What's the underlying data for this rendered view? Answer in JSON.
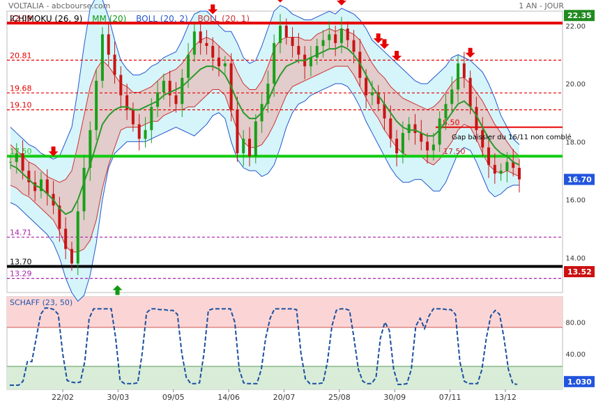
{
  "header": {
    "source": "VOLTALIA - abcbourse.com",
    "period": "1 AN - JOUR"
  },
  "legend": [
    {
      "label": "ICHIMOKU (26, 9)",
      "color": "#000000"
    },
    {
      "label": "MM (20)",
      "color": "#119911"
    },
    {
      "label": "BOLL (20, 2)",
      "color": "#2255cc"
    },
    {
      "label": "BOLL (20, 1)",
      "color": "#cc3333"
    }
  ],
  "annotations": {
    "gap_note": "Gap baissier du 16/11 non comblé",
    "schaff_title": "SCHAFF (23, 50)"
  },
  "colors": {
    "up": "#19a019",
    "down": "#c81414",
    "resistance": "#e60000",
    "support": "#11cc11",
    "boll2_fill": "#d5f5fb",
    "boll1_fill": "#e2cccc",
    "ma": "#2a9a2a"
  },
  "chart_data": [
    {
      "type": "line",
      "title": "VOLTALIA",
      "x_ticks": [
        "22/02",
        "30/03",
        "09/05",
        "14/06",
        "20/07",
        "25/08",
        "30/09",
        "07/11",
        "13/12"
      ],
      "y_ticks": [
        "22.00",
        "20.00",
        "18.00",
        "16.00",
        "14.00"
      ],
      "ylim": [
        12.8,
        22.5
      ],
      "last_price": "16.70",
      "y_badges": [
        "22.35",
        "16.70",
        "13.52"
      ],
      "levels": [
        {
          "label": "22.09",
          "value": 22.09,
          "style": "thick",
          "color": "#e60000"
        },
        {
          "label": "20.81",
          "value": 20.81,
          "style": "dashed",
          "color": "#e60000"
        },
        {
          "label": "19.68",
          "value": 19.68,
          "style": "dashed",
          "color": "#e60000"
        },
        {
          "label": "19.10",
          "value": 19.1,
          "style": "dashed",
          "color": "#e60000"
        },
        {
          "label": "18.50",
          "value": 18.5,
          "style": "thick-partial",
          "color": "#e60000"
        },
        {
          "label": "17.50",
          "value": 17.5,
          "style": "thick",
          "color": "#11cc11"
        },
        {
          "label": "14.71",
          "value": 14.71,
          "style": "dashed",
          "color": "#aa22aa"
        },
        {
          "label": "13.70",
          "value": 13.7,
          "style": "thick",
          "color": "#000000"
        },
        {
          "label": "13.29",
          "value": 13.29,
          "style": "dashed",
          "color": "#aa22aa"
        }
      ],
      "close_series": [
        17.3,
        17.6,
        17.0,
        16.6,
        16.3,
        16.7,
        16.2,
        15.8,
        15.0,
        14.3,
        13.8,
        15.6,
        17.1,
        18.4,
        20.1,
        21.7,
        21.0,
        20.3,
        19.6,
        19.1,
        18.6,
        18.1,
        18.4,
        19.2,
        19.7,
        20.1,
        19.6,
        19.3,
        20.2,
        21.0,
        21.8,
        21.4,
        21.3,
        20.9,
        20.6,
        20.7,
        19.1,
        17.6,
        18.1,
        17.5,
        18.7,
        19.3,
        20.0,
        21.4,
        22.0,
        21.6,
        21.3,
        21.0,
        20.6,
        20.9,
        21.3,
        21.5,
        21.7,
        21.4,
        21.9,
        21.5,
        21.1,
        20.2,
        19.6,
        19.7,
        19.3,
        18.8,
        18.1,
        17.6,
        18.3,
        18.6,
        18.3,
        18.0,
        17.7,
        17.9,
        18.8,
        19.3,
        19.8,
        20.7,
        20.2,
        19.2,
        18.4,
        17.8,
        17.2,
        16.9,
        17.0,
        17.3,
        17.1,
        16.7
      ],
      "ma20_series": [
        17.2,
        17.1,
        16.9,
        16.7,
        16.5,
        16.4,
        16.2,
        16.0,
        15.7,
        15.5,
        15.6,
        16.0,
        16.6,
        17.2,
        17.9,
        18.6,
        18.9,
        19.1,
        19.2,
        19.2,
        19.1,
        19.1,
        19.2,
        19.3,
        19.4,
        19.6,
        19.7,
        19.8,
        19.9,
        20.1,
        20.3,
        20.5,
        20.6,
        20.6,
        20.5,
        20.3,
        19.9,
        19.4,
        19.0,
        18.8,
        18.8,
        19.0,
        19.4,
        19.9,
        20.3,
        20.6,
        20.7,
        20.8,
        20.8,
        20.9,
        21.0,
        21.1,
        21.2,
        21.2,
        21.3,
        21.2,
        21.0,
        20.7,
        20.3,
        19.9,
        19.6,
        19.3,
        19.0,
        18.7,
        18.5,
        18.4,
        18.4,
        18.3,
        18.2,
        18.2,
        18.4,
        18.7,
        19.0,
        19.3,
        19.4,
        19.2,
        18.9,
        18.5,
        18.1,
        17.8,
        17.6,
        17.5,
        17.3,
        17.2
      ],
      "boll2_upper": [
        18.5,
        18.3,
        18.1,
        17.9,
        17.8,
        17.6,
        17.5,
        17.4,
        17.5,
        18.0,
        18.5,
        19.8,
        21.3,
        22.6,
        23.0,
        22.9,
        22.3,
        21.5,
        20.8,
        20.5,
        20.3,
        20.3,
        20.4,
        20.6,
        20.7,
        20.9,
        21.0,
        21.1,
        21.5,
        22.0,
        22.4,
        22.5,
        22.5,
        22.3,
        22.0,
        21.8,
        21.8,
        21.4,
        20.9,
        20.7,
        20.8,
        21.3,
        21.9,
        22.5,
        22.7,
        22.6,
        22.4,
        22.3,
        22.2,
        22.2,
        22.3,
        22.4,
        22.5,
        22.4,
        22.6,
        22.5,
        22.4,
        22.2,
        21.9,
        21.5,
        21.3,
        21.1,
        20.9,
        20.7,
        20.5,
        20.3,
        20.1,
        20.0,
        20.0,
        20.2,
        20.4,
        20.6,
        20.9,
        21.0,
        20.9,
        20.8,
        20.6,
        20.4,
        20.0,
        19.5,
        18.9,
        18.5,
        18.1,
        17.9
      ],
      "boll2_lower": [
        15.9,
        15.8,
        15.6,
        15.4,
        15.2,
        15.0,
        14.8,
        14.5,
        14.0,
        13.3,
        12.8,
        12.5,
        12.7,
        13.4,
        14.5,
        16.0,
        17.1,
        17.6,
        17.8,
        18.0,
        18.0,
        18.0,
        18.0,
        18.1,
        18.2,
        18.3,
        18.4,
        18.5,
        18.4,
        18.3,
        18.2,
        18.4,
        18.6,
        18.9,
        19.0,
        18.8,
        18.0,
        17.4,
        17.1,
        17.0,
        17.0,
        16.8,
        16.9,
        17.2,
        17.8,
        18.5,
        19.0,
        19.3,
        19.4,
        19.6,
        19.7,
        19.8,
        19.9,
        20.0,
        20.0,
        19.9,
        19.6,
        19.2,
        18.7,
        18.3,
        17.9,
        17.5,
        17.1,
        16.8,
        16.6,
        16.6,
        16.7,
        16.7,
        16.5,
        16.3,
        16.3,
        16.6,
        17.1,
        17.6,
        17.8,
        17.7,
        17.3,
        16.8,
        16.3,
        16.1,
        16.2,
        16.4,
        16.5,
        16.5
      ],
      "boll1_upper": [
        17.9,
        17.7,
        17.5,
        17.3,
        17.2,
        17.0,
        16.8,
        16.7,
        16.6,
        16.7,
        17.0,
        17.9,
        18.9,
        19.9,
        20.5,
        20.8,
        20.6,
        20.3,
        20.0,
        19.9,
        19.7,
        19.7,
        19.8,
        19.9,
        20.1,
        20.3,
        20.4,
        20.5,
        20.7,
        21.0,
        21.3,
        21.5,
        21.6,
        21.5,
        21.3,
        21.1,
        20.9,
        20.4,
        20.0,
        19.8,
        19.8,
        20.1,
        20.6,
        21.2,
        21.5,
        21.6,
        21.6,
        21.6,
        21.5,
        21.5,
        21.7,
        21.8,
        21.9,
        21.8,
        21.9,
        21.8,
        21.7,
        21.5,
        21.1,
        20.7,
        20.4,
        20.2,
        19.9,
        19.7,
        19.5,
        19.4,
        19.3,
        19.2,
        19.1,
        19.2,
        19.4,
        19.7,
        20.0,
        20.2,
        20.2,
        20.0,
        19.7,
        19.4,
        19.0,
        18.6,
        18.3,
        18.0,
        17.7,
        17.5
      ],
      "boll1_lower": [
        16.5,
        16.4,
        16.2,
        16.1,
        15.9,
        15.7,
        15.5,
        15.3,
        14.9,
        14.4,
        14.2,
        14.2,
        14.3,
        14.6,
        15.3,
        16.4,
        17.2,
        17.8,
        18.4,
        18.5,
        18.5,
        18.5,
        18.6,
        18.7,
        18.7,
        18.9,
        19.0,
        19.1,
        19.1,
        19.2,
        19.2,
        19.4,
        19.6,
        19.8,
        19.8,
        19.6,
        19.0,
        18.4,
        18.0,
        17.8,
        17.8,
        17.9,
        18.2,
        18.6,
        19.1,
        19.6,
        19.9,
        20.0,
        20.1,
        20.2,
        20.3,
        20.4,
        20.5,
        20.6,
        20.6,
        20.6,
        20.3,
        19.9,
        19.5,
        19.1,
        18.8,
        18.4,
        18.1,
        17.8,
        17.6,
        17.5,
        17.5,
        17.5,
        17.3,
        17.2,
        17.4,
        17.7,
        18.0,
        18.4,
        18.6,
        18.5,
        18.1,
        17.6,
        17.2,
        17.0,
        16.9,
        17.0,
        16.9,
        16.8
      ],
      "sell_signals": [
        7,
        33,
        44,
        54,
        60,
        61,
        63,
        75
      ],
      "buy_signals": [
        22
      ]
    },
    {
      "type": "line",
      "title": "SCHAFF (23, 50)",
      "y_ticks": [
        "80.00",
        "40.00"
      ],
      "ylim": [
        0,
        100
      ],
      "last_value": "1.030",
      "zones": {
        "overbought": 75,
        "oversold": 25
      },
      "values": [
        0,
        0,
        0,
        5,
        30,
        30,
        60,
        90,
        98,
        98,
        96,
        90,
        40,
        6,
        4,
        3,
        4,
        30,
        85,
        97,
        97,
        97,
        97,
        97,
        60,
        6,
        2,
        2,
        2,
        3,
        40,
        92,
        97,
        97,
        96,
        96,
        95,
        95,
        90,
        40,
        10,
        2,
        2,
        3,
        40,
        95,
        97,
        97,
        97,
        97,
        97,
        80,
        20,
        3,
        2,
        2,
        2,
        20,
        60,
        85,
        97,
        97,
        97,
        97,
        97,
        96,
        40,
        8,
        2,
        2,
        2,
        3,
        30,
        75,
        95,
        97,
        97,
        95,
        60,
        20,
        5,
        2,
        2,
        10,
        60,
        80,
        70,
        20,
        1,
        1,
        2,
        20,
        75,
        85,
        72,
        88,
        97,
        97,
        97,
        96,
        96,
        90,
        30,
        5,
        2,
        2,
        2,
        20,
        60,
        88,
        95,
        90,
        60,
        20,
        2,
        1
      ]
    }
  ]
}
